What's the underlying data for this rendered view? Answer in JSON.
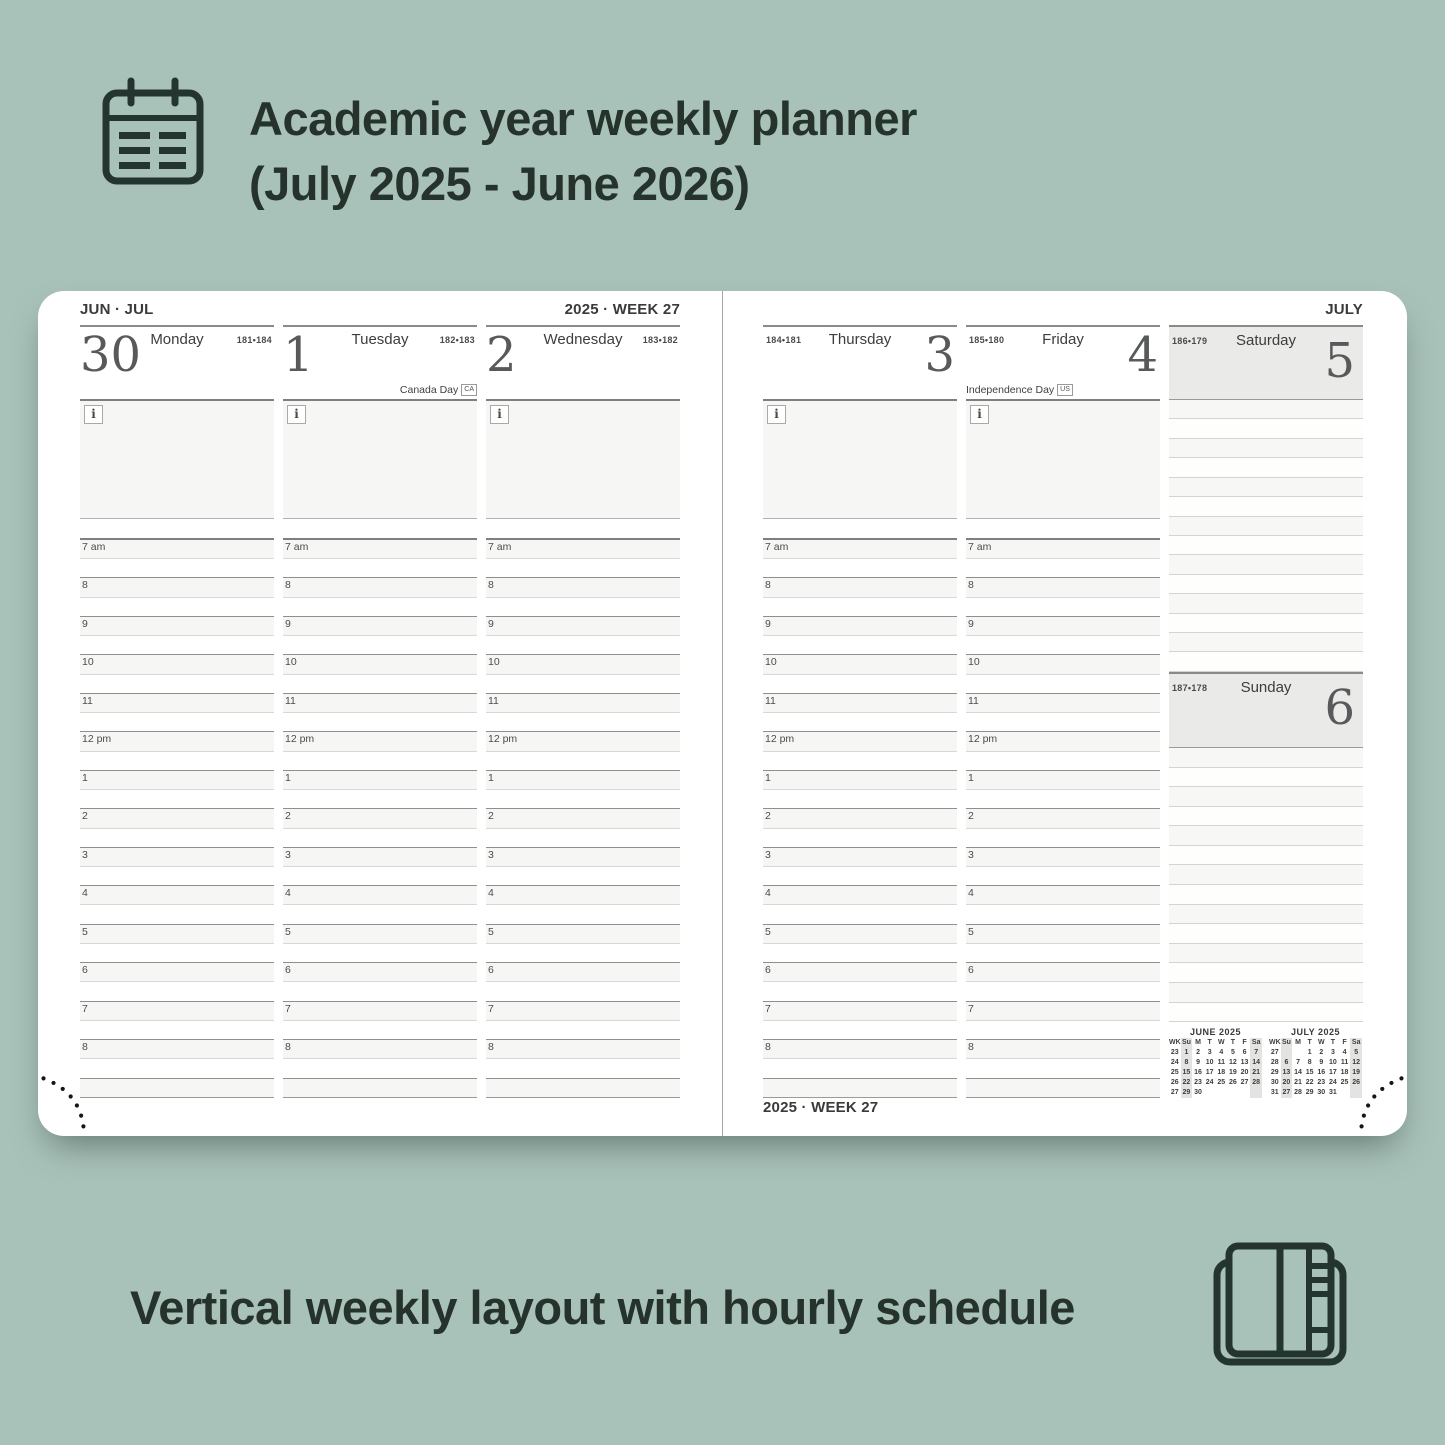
{
  "hero": {
    "title_line1": "Academic year weekly planner",
    "title_line2": "(July 2025 - June 2026)"
  },
  "caption": {
    "text": "Vertical weekly layout with hourly schedule"
  },
  "colors": {
    "background": "#a9c2b9",
    "ink": "#25332c",
    "notes_fill": "#f6f6f4",
    "weekend_fill": "#eaeae8"
  },
  "planner": {
    "info_icon": "i",
    "hours": [
      "7 am",
      "8",
      "9",
      "10",
      "11",
      "12 pm",
      "1",
      "2",
      "3",
      "4",
      "5",
      "6",
      "7",
      "8"
    ],
    "left_page": {
      "month_label": "JUN · JUL",
      "week_label": "2025 · WEEK 27",
      "days": [
        {
          "number": "30",
          "name": "Monday",
          "ordinal": "181•184"
        },
        {
          "number": "1",
          "name": "Tuesday",
          "ordinal": "182•183",
          "holiday": {
            "name": "Canada Day",
            "badge": "CA",
            "align": "right"
          }
        },
        {
          "number": "2",
          "name": "Wednesday",
          "ordinal": "183•182"
        }
      ]
    },
    "right_page": {
      "month_label": "JULY",
      "week_label": "2025 · WEEK 27",
      "days": [
        {
          "number": "3",
          "name": "Thursday",
          "ordinal": "184•181"
        },
        {
          "number": "4",
          "name": "Friday",
          "ordinal": "185•180",
          "holiday": {
            "name": "Independence Day",
            "badge": "US",
            "align": "left"
          }
        }
      ],
      "weekend": {
        "saturday": {
          "number": "5",
          "name": "Saturday",
          "ordinal": "186•179"
        },
        "sunday": {
          "number": "6",
          "name": "Sunday",
          "ordinal": "187•178"
        }
      }
    },
    "mini_calendars": [
      {
        "title": "JUNE 2025",
        "dow": [
          "WK",
          "Su",
          "M",
          "T",
          "W",
          "T",
          "F",
          "Sa"
        ],
        "weeks": [
          [
            "23",
            "1",
            "2",
            "3",
            "4",
            "5",
            "6",
            "7"
          ],
          [
            "24",
            "8",
            "9",
            "10",
            "11",
            "12",
            "13",
            "14"
          ],
          [
            "25",
            "15",
            "16",
            "17",
            "18",
            "19",
            "20",
            "21"
          ],
          [
            "26",
            "22",
            "23",
            "24",
            "25",
            "26",
            "27",
            "28"
          ],
          [
            "27",
            "29",
            "30",
            "",
            "",
            "",
            "",
            ""
          ]
        ]
      },
      {
        "title": "JULY 2025",
        "dow": [
          "WK",
          "Su",
          "M",
          "T",
          "W",
          "T",
          "F",
          "Sa"
        ],
        "weeks": [
          [
            "27",
            "",
            "",
            "1",
            "2",
            "3",
            "4",
            "5"
          ],
          [
            "28",
            "6",
            "7",
            "8",
            "9",
            "10",
            "11",
            "12"
          ],
          [
            "29",
            "13",
            "14",
            "15",
            "16",
            "17",
            "18",
            "19"
          ],
          [
            "30",
            "20",
            "21",
            "22",
            "23",
            "24",
            "25",
            "26"
          ],
          [
            "31",
            "27",
            "28",
            "29",
            "30",
            "31",
            "",
            ""
          ]
        ]
      }
    ]
  }
}
